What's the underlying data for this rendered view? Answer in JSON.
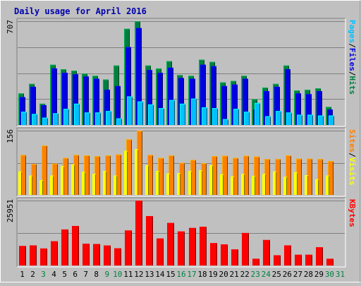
{
  "title": "Daily usage for April 2016",
  "colors": {
    "background": "#c0c0c0",
    "panel": "#c0c0c0",
    "title_text": "#0000b0",
    "hits": "#008040",
    "files": "#0000e0",
    "pages": "#00c0ff",
    "visits": "#ffff00",
    "sites": "#ff8000",
    "kbytes": "#ff0000",
    "weekday_label": "#000000",
    "weekend_label": "#008040"
  },
  "chart_data": [
    {
      "type": "bar",
      "title": "Daily usage for April 2016",
      "categories": [
        "1",
        "2",
        "3",
        "4",
        "5",
        "6",
        "7",
        "8",
        "9",
        "10",
        "11",
        "12",
        "13",
        "14",
        "15",
        "16",
        "17",
        "18",
        "19",
        "20",
        "21",
        "22",
        "23",
        "24",
        "25",
        "26",
        "27",
        "28",
        "29",
        "30",
        "31"
      ],
      "weekend_days": [
        "3",
        "9",
        "10",
        "16",
        "17",
        "23",
        "24",
        "30",
        "31"
      ],
      "ymax_label": "707",
      "ylim": [
        0,
        707
      ],
      "right_label_parts": [
        {
          "text": "Pages",
          "color_key": "pages"
        },
        {
          "text": "/",
          "color_key": "weekday_label"
        },
        {
          "text": "Files",
          "color_key": "files"
        },
        {
          "text": "/",
          "color_key": "weekday_label"
        },
        {
          "text": "Hits",
          "color_key": "hits"
        }
      ],
      "series": [
        {
          "name": "Hits",
          "color_key": "hits",
          "values": [
            215,
            280,
            145,
            410,
            380,
            370,
            350,
            335,
            310,
            405,
            655,
            707,
            405,
            385,
            435,
            340,
            335,
            445,
            430,
            290,
            300,
            335,
            175,
            255,
            280,
            405,
            235,
            240,
            250,
            123,
            0
          ]
        },
        {
          "name": "Files",
          "color_key": "files",
          "values": [
            190,
            260,
            135,
            385,
            355,
            345,
            330,
            315,
            240,
            265,
            530,
            660,
            375,
            355,
            390,
            320,
            315,
            410,
            400,
            265,
            275,
            315,
            105,
            230,
            260,
            380,
            215,
            210,
            230,
            105,
            0
          ]
        },
        {
          "name": "Pages",
          "color_key": "pages",
          "values": [
            90,
            75,
            50,
            80,
            110,
            145,
            85,
            85,
            95,
            45,
            195,
            160,
            140,
            115,
            170,
            145,
            180,
            120,
            115,
            40,
            110,
            90,
            150,
            60,
            95,
            85,
            70,
            70,
            65,
            65,
            0
          ]
        }
      ]
    },
    {
      "type": "bar",
      "categories": [
        "1",
        "2",
        "3",
        "4",
        "5",
        "6",
        "7",
        "8",
        "9",
        "10",
        "11",
        "12",
        "13",
        "14",
        "15",
        "16",
        "17",
        "18",
        "19",
        "20",
        "21",
        "22",
        "23",
        "24",
        "25",
        "26",
        "27",
        "28",
        "29",
        "30",
        "31"
      ],
      "ymax_label": "156",
      "ylim": [
        0,
        156
      ],
      "right_label_parts": [
        {
          "text": "Sites",
          "color_key": "sites"
        },
        {
          "text": "/",
          "color_key": "weekday_label"
        },
        {
          "text": "Visits",
          "color_key": "visits"
        }
      ],
      "series": [
        {
          "name": "Sites",
          "color_key": "sites",
          "values": [
            97,
            75,
            120,
            76,
            90,
            97,
            96,
            94,
            96,
            98,
            135,
            156,
            97,
            90,
            96,
            78,
            85,
            77,
            94,
            95,
            90,
            95,
            93,
            87,
            87,
            96,
            88,
            88,
            87,
            82,
            0
          ]
        },
        {
          "name": "Visits",
          "color_key": "visits",
          "values": [
            57,
            47,
            36,
            47,
            70,
            74,
            56,
            51,
            58,
            47,
            107,
            111,
            72,
            58,
            52,
            53,
            58,
            60,
            72,
            50,
            45,
            51,
            46,
            51,
            57,
            44,
            55,
            48,
            38,
            47,
            0
          ]
        }
      ]
    },
    {
      "type": "bar",
      "categories": [
        "1",
        "2",
        "3",
        "4",
        "5",
        "6",
        "7",
        "8",
        "9",
        "10",
        "11",
        "12",
        "13",
        "14",
        "15",
        "16",
        "17",
        "18",
        "19",
        "20",
        "21",
        "22",
        "23",
        "24",
        "25",
        "26",
        "27",
        "28",
        "29",
        "30",
        "31"
      ],
      "ymax_label": "25951",
      "ylim": [
        0,
        25951
      ],
      "right_label_parts": [
        {
          "text": "KBytes",
          "color_key": "kbytes"
        }
      ],
      "series": [
        {
          "name": "KBytes",
          "color_key": "kbytes",
          "values": [
            7800,
            8050,
            6800,
            9680,
            14400,
            15800,
            8700,
            8600,
            8000,
            6880,
            14000,
            25951,
            19750,
            10800,
            17000,
            13600,
            15000,
            15500,
            8950,
            8450,
            6440,
            13000,
            2700,
            10200,
            4100,
            8050,
            4300,
            4300,
            7300,
            2700,
            0
          ]
        }
      ]
    }
  ]
}
